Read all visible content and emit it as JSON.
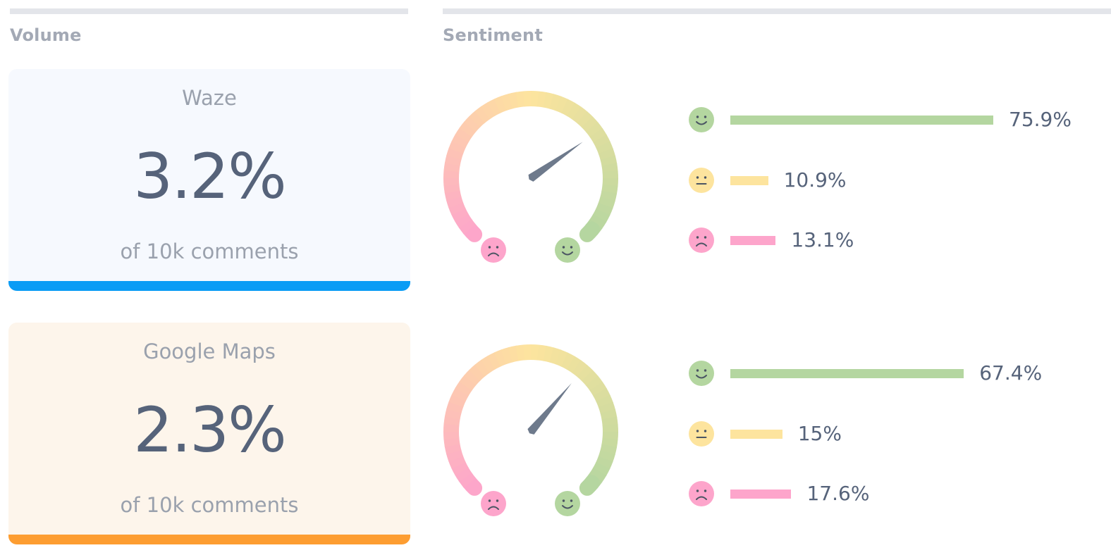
{
  "sections": {
    "volume_title": "Volume",
    "sentiment_title": "Sentiment"
  },
  "colors": {
    "positive": "#b4d6a0",
    "neutral": "#fde49e",
    "negative": "#fda5cb",
    "needle": "#6e7a8c",
    "waze_card_bg": "#f6f9fe",
    "waze_accent": "#0a9cf5",
    "gmaps_card_bg": "#fdf5eb",
    "gmaps_accent": "#fd9d31"
  },
  "volume": [
    {
      "name": "Waze",
      "value": "3.2%",
      "subtitle": "of 10k comments"
    },
    {
      "name": "Google Maps",
      "value": "2.3%",
      "subtitle": "of 10k comments"
    }
  ],
  "sentiment": [
    {
      "needle_angle_deg": 55,
      "breakdown": [
        {
          "type": "positive",
          "icon": "smiley-icon",
          "value": 75.9,
          "label": "75.9%"
        },
        {
          "type": "neutral",
          "icon": "neutral-face-icon",
          "value": 10.9,
          "label": "10.9%"
        },
        {
          "type": "negative",
          "icon": "frown-icon",
          "value": 13.1,
          "label": "13.1%"
        }
      ]
    },
    {
      "needle_angle_deg": 40,
      "breakdown": [
        {
          "type": "positive",
          "icon": "smiley-icon",
          "value": 67.4,
          "label": "67.4%"
        },
        {
          "type": "neutral",
          "icon": "neutral-face-icon",
          "value": 15,
          "label": "15%"
        },
        {
          "type": "negative",
          "icon": "frown-icon",
          "value": 17.6,
          "label": "17.6%"
        }
      ]
    }
  ]
}
